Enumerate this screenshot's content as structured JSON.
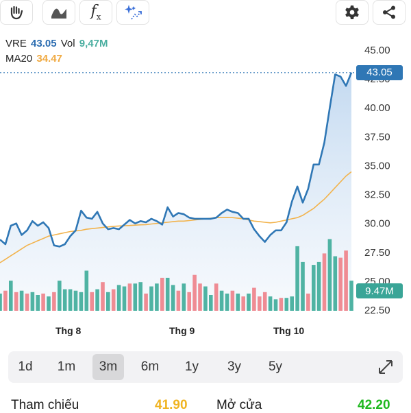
{
  "toolbar": {
    "tools": [
      {
        "icon": "hand-draw-icon"
      },
      {
        "icon": "line-style-icon"
      },
      {
        "icon": "function-icon",
        "glyph": "f",
        "sub": "x"
      },
      {
        "icon": "magic-sparkle-icon"
      }
    ],
    "actions": [
      {
        "icon": "gear-icon"
      },
      {
        "icon": "share-icon"
      }
    ]
  },
  "legend": {
    "symbol": "VRE",
    "price": "43.05",
    "vol_label": "Vol",
    "vol_value": "9,47M",
    "ma_label": "MA20",
    "ma_value": "34.47"
  },
  "tags": {
    "price": "43.05",
    "volume": "9.47M"
  },
  "x_labels": [
    "Thg 8",
    "Thg 9",
    "Thg 10"
  ],
  "y_labels": [
    "45.00",
    "42.50",
    "40.00",
    "37.50",
    "35.00",
    "32.50",
    "30.00",
    "27.50",
    "25.00",
    "22.50"
  ],
  "ranges": {
    "items": [
      "1d",
      "1m",
      "3m",
      "6m",
      "1y",
      "3y",
      "5y"
    ],
    "active": "3m"
  },
  "quote": {
    "ref_label": "Tham chiếu",
    "ref_value": "41.90",
    "open_label": "Mở cửa",
    "open_value": "42.20"
  },
  "colors": {
    "price_line": "#2f77b5",
    "area_top": "#b9d3ee",
    "area_bottom": "#eef4fb",
    "ma_line": "#f2b34c",
    "vol_up": "#4fb3a3",
    "vol_down": "#ef8c94",
    "price_tag": "#2f77b5",
    "vol_tag": "#3aa597"
  },
  "chart_data": {
    "type": "line",
    "ylim": [
      22.5,
      45
    ],
    "price": [
      28.6,
      28.2,
      29.8,
      30.0,
      29.0,
      29.4,
      30.2,
      29.8,
      30.1,
      29.6,
      28.1,
      28.0,
      28.2,
      28.9,
      29.4,
      31.1,
      30.5,
      30.4,
      31.0,
      30.0,
      29.5,
      29.6,
      29.5,
      29.9,
      30.3,
      30.0,
      30.2,
      30.1,
      30.4,
      30.2,
      29.9,
      31.4,
      30.6,
      30.9,
      30.8,
      30.5,
      30.4,
      30.4,
      30.4,
      30.4,
      30.5,
      30.9,
      31.2,
      31.0,
      30.9,
      30.4,
      30.4,
      29.5,
      28.9,
      28.4,
      29.0,
      29.4,
      29.4,
      30.1,
      31.9,
      33.2,
      31.8,
      33.0,
      35.1,
      35.1,
      37.0,
      40.0,
      42.9,
      42.7,
      41.9,
      43.05
    ],
    "ma20": [
      26.6,
      26.9,
      27.2,
      27.5,
      27.8,
      28.1,
      28.3,
      28.5,
      28.7,
      28.9,
      29.0,
      29.1,
      29.2,
      29.3,
      29.35,
      29.4,
      29.5,
      29.55,
      29.6,
      29.65,
      29.7,
      29.75,
      29.78,
      29.8,
      29.82,
      29.85,
      29.88,
      29.9,
      29.95,
      30.0,
      30.05,
      30.1,
      30.15,
      30.2,
      30.2,
      30.25,
      30.3,
      30.35,
      30.4,
      30.45,
      30.5,
      30.5,
      30.52,
      30.5,
      30.45,
      30.4,
      30.3,
      30.2,
      30.15,
      30.1,
      30.05,
      30.1,
      30.2,
      30.3,
      30.4,
      30.5,
      30.7,
      31.0,
      31.3,
      31.7,
      32.1,
      32.6,
      33.1,
      33.6,
      34.1,
      34.47
    ],
    "volume": [
      12,
      14,
      21,
      13,
      14,
      12,
      13,
      11,
      12,
      10,
      13,
      21,
      15,
      15,
      14,
      13,
      28,
      13,
      15,
      20,
      13,
      15,
      18,
      17,
      19,
      19,
      20,
      12,
      17,
      19,
      23,
      23,
      18,
      14,
      19,
      13,
      25,
      19,
      17,
      11,
      19,
      14,
      12,
      14,
      12,
      10,
      12,
      16,
      10,
      13,
      10,
      8,
      9,
      9,
      10,
      45,
      34,
      12,
      32,
      34,
      40,
      50,
      38,
      37,
      42,
      21
    ],
    "volume_up": [
      1,
      0,
      1,
      0,
      1,
      0,
      1,
      1,
      0,
      1,
      0,
      1,
      1,
      1,
      1,
      1,
      1,
      0,
      1,
      0,
      1,
      0,
      1,
      1,
      0,
      1,
      1,
      0,
      1,
      1,
      0,
      1,
      1,
      0,
      1,
      0,
      0,
      0,
      1,
      1,
      0,
      1,
      1,
      0,
      1,
      0,
      1,
      0,
      0,
      0,
      1,
      1,
      0,
      1,
      1,
      1,
      1,
      0,
      1,
      1,
      0,
      1,
      1,
      0,
      0,
      1
    ]
  }
}
